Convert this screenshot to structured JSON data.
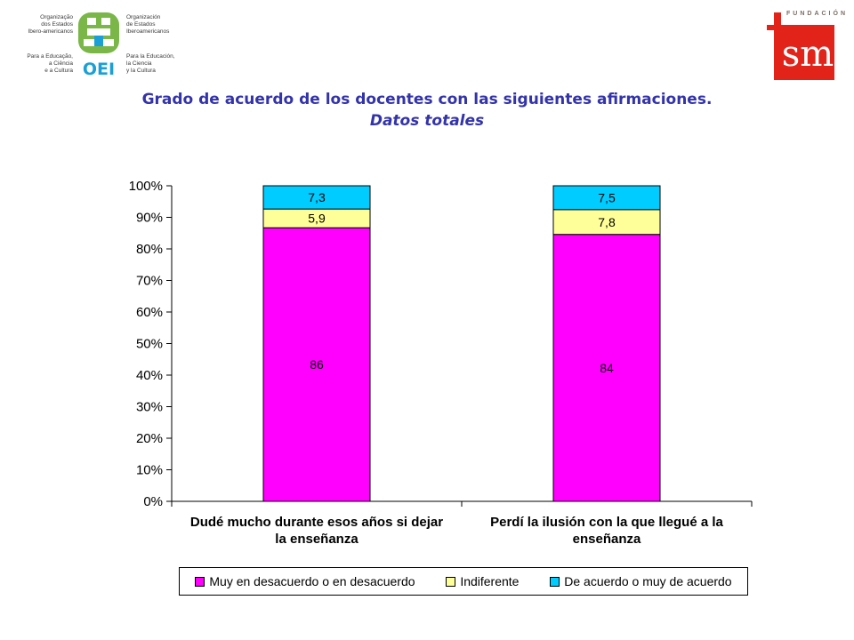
{
  "logos": {
    "oei": {
      "mark_text": "OEI",
      "pt_lines": [
        "Organização",
        "dos Estados",
        "Ibero-americanos"
      ],
      "pt_sub": [
        "Para a Educação,",
        "a Ciência",
        "e a Cultura"
      ],
      "es_lines": [
        "Organización",
        "de Estados",
        "Iberoamericanos"
      ],
      "es_sub": [
        "Para la Educación,",
        "la Ciencia",
        "y la Cultura"
      ]
    },
    "fsm": {
      "word": "FUNDACIÓN",
      "letters": "sm",
      "f_letter": "f"
    }
  },
  "title": "Grado de acuerdo de los docentes con las siguientes afirmaciones.",
  "subtitle": "Datos totales",
  "colors": {
    "muy_desacuerdo": "#ff00ff",
    "indiferente": "#ffff99",
    "acuerdo": "#00ccff",
    "title": "#3333aa",
    "fsm_red": "#e2231a",
    "oei_green": "#7ab648",
    "oei_blue": "#1b9fd6"
  },
  "chart_data": {
    "type": "bar",
    "stacked": true,
    "percent": true,
    "categories": [
      "Dudé mucho durante esos años si dejar la enseñanza",
      "Perdí la ilusión con la que llegué a la enseñanza"
    ],
    "category_lines": [
      [
        "Dudé mucho durante esos años si dejar",
        "la enseñanza"
      ],
      [
        "Perdí la ilusión con la que llegué a la",
        "enseñanza"
      ]
    ],
    "series": [
      {
        "name": "Muy en desacuerdo o en desacuerdo",
        "values": [
          86,
          84
        ],
        "labels": [
          "86",
          "84"
        ],
        "color_key": "muy_desacuerdo"
      },
      {
        "name": "Indiferente",
        "values": [
          5.9,
          7.8
        ],
        "labels": [
          "5,9",
          "7,8"
        ],
        "color_key": "indiferente"
      },
      {
        "name": "De acuerdo o muy de acuerdo",
        "values": [
          7.3,
          7.5
        ],
        "labels": [
          "7,3",
          "7,5"
        ],
        "color_key": "acuerdo"
      }
    ],
    "yticks": [
      "0%",
      "10%",
      "20%",
      "30%",
      "40%",
      "50%",
      "60%",
      "70%",
      "80%",
      "90%",
      "100%"
    ],
    "ylim": [
      0,
      100
    ],
    "grid": false,
    "legend_position": "bottom"
  }
}
